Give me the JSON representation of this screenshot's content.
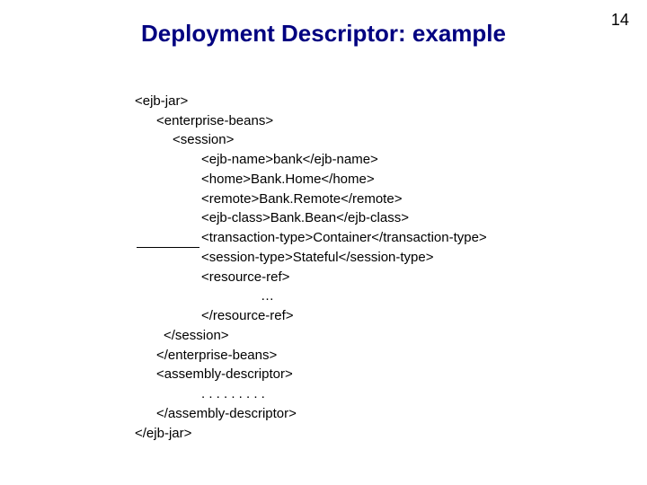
{
  "page_number": "14",
  "title": "Deployment Descriptor: example",
  "colors": {
    "title_color": "#000080",
    "text_color": "#000000",
    "background": "#ffffff"
  },
  "typography": {
    "title_fontsize": 26,
    "title_weight": "bold",
    "body_fontsize": 15,
    "font_family": "Arial"
  },
  "code": {
    "lines": [
      {
        "indent": 0,
        "text": "<ejb-jar>"
      },
      {
        "indent": 1,
        "text": "<enterprise-beans>"
      },
      {
        "indent": 2,
        "text": "<session>"
      },
      {
        "indent": 3,
        "text": "<ejb-name>bank</ejb-name>"
      },
      {
        "indent": 3,
        "text": "<home>Bank.Home</home>"
      },
      {
        "indent": 3,
        "text": "<remote>Bank.Remote</remote>"
      },
      {
        "indent": 3,
        "text": "<ejb-class>Bank.Bean</ejb-class>"
      },
      {
        "indent": 3,
        "text": "<transaction-type>Container</transaction-type>"
      },
      {
        "indent": 3,
        "text": "<session-type>Stateful</session-type>"
      },
      {
        "indent": 3,
        "text": "<resource-ref>"
      },
      {
        "indent": 4,
        "text": "…"
      },
      {
        "indent": 3,
        "text": "</resource-ref>"
      },
      {
        "indent": 2,
        "text": "</session>"
      },
      {
        "indent": 1,
        "text": "</enterprise-beans>"
      },
      {
        "indent": 1,
        "text": "<assembly-descriptor>"
      },
      {
        "indent": 5,
        "text": ". . . . . . . . ."
      },
      {
        "indent": 1,
        "text": "</assembly-descriptor>"
      },
      {
        "indent": 0,
        "text": "</ejb-jar>"
      }
    ]
  }
}
